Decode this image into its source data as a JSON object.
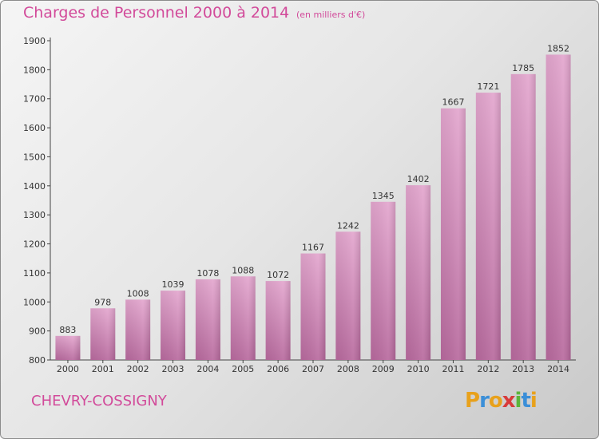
{
  "chart_data": {
    "type": "bar",
    "title": "Charges de Personnel 2000 à 2014",
    "subtitle": "(en milliers d'€)",
    "categories": [
      "2000",
      "2001",
      "2002",
      "2003",
      "2004",
      "2005",
      "2006",
      "2007",
      "2008",
      "2009",
      "2010",
      "2011",
      "2012",
      "2013",
      "2014"
    ],
    "values": [
      883,
      978,
      1008,
      1039,
      1078,
      1088,
      1072,
      1167,
      1242,
      1345,
      1402,
      1667,
      1721,
      1785,
      1852
    ],
    "y_ticks": [
      800,
      900,
      1000,
      1100,
      1200,
      1300,
      1400,
      1500,
      1600,
      1700,
      1800,
      1900
    ],
    "ylim": [
      800,
      1900
    ],
    "grid": false,
    "bar_color": "#d68ab8"
  },
  "footer": {
    "place": "CHEVRY-COSSIGNY",
    "logo_letters": [
      "P",
      "r",
      "o",
      "x",
      "i",
      "t",
      "i"
    ],
    "logo_colors": [
      "#e8a11c",
      "#3b8fd8",
      "#e8a11c",
      "#d83b3b",
      "#5cb53a",
      "#3b8fd8",
      "#e8a11c"
    ]
  }
}
